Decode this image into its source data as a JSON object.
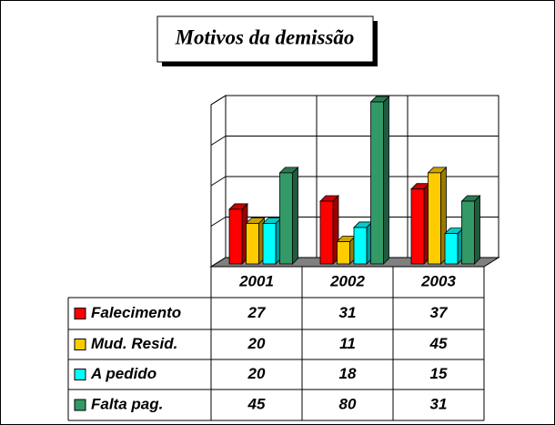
{
  "chart_data": {
    "type": "bar3d",
    "title": "Motivos da demissão",
    "categories": [
      "2001",
      "2002",
      "2003"
    ],
    "series": [
      {
        "name": "Falecimento",
        "color": "#ff0000",
        "values": [
          27,
          31,
          37
        ]
      },
      {
        "name": "Mud. Resid.",
        "color": "#ffcc00",
        "values": [
          20,
          11,
          45
        ]
      },
      {
        "name": "A pedido",
        "color": "#00ffff",
        "values": [
          20,
          18,
          15
        ]
      },
      {
        "name": "Falta pag.",
        "color": "#339966",
        "values": [
          45,
          80,
          31
        ]
      }
    ],
    "ylim": [
      0,
      80
    ],
    "yticks": [
      0,
      20,
      40,
      60,
      80
    ],
    "grid": true
  }
}
